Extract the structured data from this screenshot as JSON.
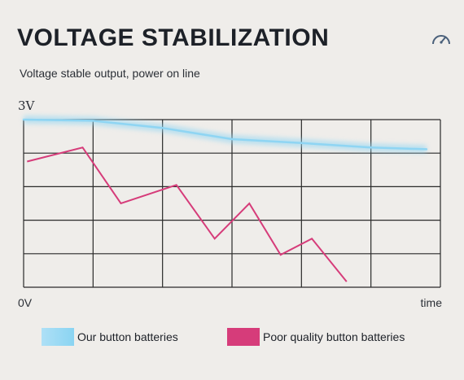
{
  "title": "VOLTAGE STABILIZATION",
  "subtitle": "Voltage stable output, power on line",
  "gauge_icon": "gauge-icon",
  "chart_data": {
    "type": "line",
    "y_top_label": "3V",
    "y_bottom_label": "0V",
    "xlabel": "time",
    "ylim": [
      0,
      3
    ],
    "xlim": [
      0,
      6
    ],
    "grid": true,
    "legend_position": "bottom",
    "series": [
      {
        "name": "Our button batteries",
        "color": "#8fd5f3",
        "x": [
          0,
          1,
          2,
          3,
          4,
          5,
          5.8
        ],
        "y": [
          3.0,
          2.98,
          2.85,
          2.65,
          2.58,
          2.5,
          2.47
        ]
      },
      {
        "name": "Poor quality button batteries",
        "color": "#d63c7a",
        "x": [
          0.05,
          0.85,
          1.4,
          2.2,
          2.75,
          3.25,
          3.7,
          4.15,
          4.65
        ],
        "y": [
          2.25,
          2.5,
          1.5,
          1.83,
          0.87,
          1.5,
          0.58,
          0.87,
          0.1
        ]
      }
    ]
  }
}
